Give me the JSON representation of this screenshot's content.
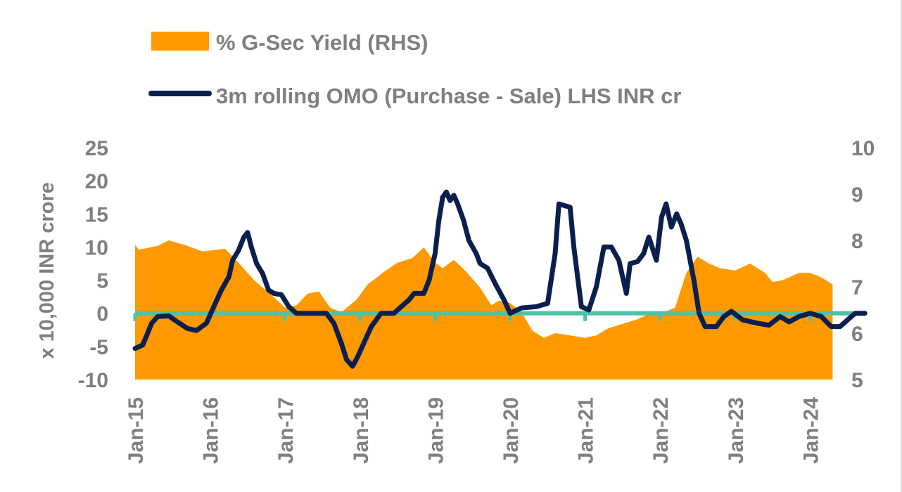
{
  "chart_data": {
    "type": "area+line",
    "colors": {
      "yield_area": "#ff9900",
      "omo_line": "#0b1f4f",
      "zero_line": "#4fc1a6",
      "text": "#7f7f7f"
    },
    "legend": [
      {
        "label": "% G-Sec Yield (RHS)",
        "kind": "area"
      },
      {
        "label": "3m rolling OMO (Purchase - Sale) LHS INR cr",
        "kind": "line"
      }
    ],
    "left_axis": {
      "title": "x 10,000 INR crore",
      "min": -10,
      "max": 25,
      "ticks": [
        "25",
        "20",
        "15",
        "10",
        "5",
        "0",
        "-5",
        "-10"
      ]
    },
    "right_axis": {
      "min": 5,
      "max": 10,
      "ticks": [
        "10",
        "9",
        "8",
        "7",
        "6",
        "5"
      ]
    },
    "x_axis": {
      "ticks": [
        "Jan-15",
        "Jan-16",
        "Jan-17",
        "Jan-18",
        "Jan-19",
        "Jan-20",
        "Jan-21",
        "Jan-22",
        "Jan-23",
        "Jan-24"
      ]
    },
    "series": [
      {
        "name": "% G-Sec Yield (RHS)",
        "axis": "right",
        "points": [
          [
            0.0,
            7.9
          ],
          [
            0.05,
            7.8
          ],
          [
            0.3,
            7.88
          ],
          [
            0.45,
            8.0
          ],
          [
            0.7,
            7.88
          ],
          [
            0.9,
            7.76
          ],
          [
            1.0,
            7.78
          ],
          [
            1.2,
            7.82
          ],
          [
            1.4,
            7.48
          ],
          [
            1.6,
            7.12
          ],
          [
            1.75,
            6.92
          ],
          [
            1.9,
            6.7
          ],
          [
            2.0,
            6.55
          ],
          [
            2.15,
            6.6
          ],
          [
            2.3,
            6.85
          ],
          [
            2.45,
            6.9
          ],
          [
            2.6,
            6.55
          ],
          [
            2.75,
            6.45
          ],
          [
            2.95,
            6.72
          ],
          [
            3.1,
            7.05
          ],
          [
            3.3,
            7.3
          ],
          [
            3.5,
            7.52
          ],
          [
            3.7,
            7.62
          ],
          [
            3.85,
            7.85
          ],
          [
            4.0,
            7.52
          ],
          [
            4.1,
            7.4
          ],
          [
            4.25,
            7.58
          ],
          [
            4.4,
            7.35
          ],
          [
            4.6,
            6.98
          ],
          [
            4.75,
            6.6
          ],
          [
            4.85,
            6.7
          ],
          [
            5.0,
            6.65
          ],
          [
            5.15,
            6.45
          ],
          [
            5.3,
            6.05
          ],
          [
            5.45,
            5.9
          ],
          [
            5.6,
            6.0
          ],
          [
            5.8,
            5.95
          ],
          [
            6.0,
            5.9
          ],
          [
            6.15,
            5.95
          ],
          [
            6.3,
            6.1
          ],
          [
            6.5,
            6.2
          ],
          [
            6.7,
            6.3
          ],
          [
            6.9,
            6.45
          ],
          [
            7.05,
            6.45
          ],
          [
            7.2,
            6.55
          ],
          [
            7.35,
            7.3
          ],
          [
            7.5,
            7.65
          ],
          [
            7.65,
            7.5
          ],
          [
            7.8,
            7.4
          ],
          [
            8.0,
            7.35
          ],
          [
            8.2,
            7.5
          ],
          [
            8.4,
            7.3
          ],
          [
            8.5,
            7.1
          ],
          [
            8.65,
            7.15
          ],
          [
            8.85,
            7.3
          ],
          [
            9.0,
            7.3
          ],
          [
            9.15,
            7.2
          ],
          [
            9.3,
            7.05
          ]
        ]
      },
      {
        "name": "3m rolling OMO (Purchase - Sale) LHS INR cr",
        "axis": "left",
        "points": [
          [
            0.0,
            -5.3
          ],
          [
            0.1,
            -4.8
          ],
          [
            0.15,
            -3.5
          ],
          [
            0.22,
            -1.5
          ],
          [
            0.3,
            -0.5
          ],
          [
            0.45,
            -0.4
          ],
          [
            0.55,
            -1.2
          ],
          [
            0.7,
            -2.3
          ],
          [
            0.82,
            -2.6
          ],
          [
            0.95,
            -1.5
          ],
          [
            1.05,
            1.0
          ],
          [
            1.15,
            3.5
          ],
          [
            1.25,
            5.5
          ],
          [
            1.3,
            8.0
          ],
          [
            1.38,
            9.5
          ],
          [
            1.45,
            11.5
          ],
          [
            1.5,
            12.2
          ],
          [
            1.55,
            10.0
          ],
          [
            1.62,
            7.5
          ],
          [
            1.7,
            6.0
          ],
          [
            1.78,
            3.5
          ],
          [
            1.85,
            3.0
          ],
          [
            1.95,
            2.8
          ],
          [
            2.05,
            1.0
          ],
          [
            2.15,
            0.0
          ],
          [
            2.4,
            0.0
          ],
          [
            2.55,
            0.0
          ],
          [
            2.65,
            -1.5
          ],
          [
            2.75,
            -4.5
          ],
          [
            2.82,
            -7.0
          ],
          [
            2.9,
            -8.0
          ],
          [
            2.97,
            -6.5
          ],
          [
            3.05,
            -4.5
          ],
          [
            3.15,
            -2.0
          ],
          [
            3.28,
            0.0
          ],
          [
            3.45,
            0.0
          ],
          [
            3.55,
            1.0
          ],
          [
            3.65,
            2.0
          ],
          [
            3.72,
            3.0
          ],
          [
            3.85,
            3.0
          ],
          [
            3.92,
            5.0
          ],
          [
            4.0,
            9.0
          ],
          [
            4.05,
            14.0
          ],
          [
            4.1,
            17.5
          ],
          [
            4.15,
            18.3
          ],
          [
            4.2,
            17.0
          ],
          [
            4.25,
            17.8
          ],
          [
            4.3,
            16.5
          ],
          [
            4.38,
            14.0
          ],
          [
            4.45,
            11.0
          ],
          [
            4.55,
            9.0
          ],
          [
            4.6,
            7.5
          ],
          [
            4.7,
            6.8
          ],
          [
            4.8,
            4.5
          ],
          [
            4.92,
            2.0
          ],
          [
            5.0,
            0.0
          ],
          [
            5.15,
            0.8
          ],
          [
            5.35,
            1.0
          ],
          [
            5.5,
            1.5
          ],
          [
            5.6,
            9.0
          ],
          [
            5.65,
            16.5
          ],
          [
            5.8,
            16.0
          ],
          [
            5.85,
            10.0
          ],
          [
            5.95,
            1.0
          ],
          [
            6.05,
            0.5
          ],
          [
            6.15,
            4.0
          ],
          [
            6.25,
            10.0
          ],
          [
            6.35,
            10.0
          ],
          [
            6.45,
            8.0
          ],
          [
            6.55,
            3.0
          ],
          [
            6.6,
            7.5
          ],
          [
            6.7,
            7.8
          ],
          [
            6.78,
            9.0
          ],
          [
            6.85,
            11.5
          ],
          [
            6.95,
            8.0
          ],
          [
            7.02,
            14.5
          ],
          [
            7.08,
            16.5
          ],
          [
            7.15,
            13.0
          ],
          [
            7.22,
            15.0
          ],
          [
            7.28,
            13.5
          ],
          [
            7.35,
            11.0
          ],
          [
            7.45,
            5.0
          ],
          [
            7.52,
            0.0
          ],
          [
            7.6,
            -2.0
          ],
          [
            7.75,
            -2.0
          ],
          [
            7.85,
            -0.5
          ],
          [
            7.95,
            0.3
          ],
          [
            8.1,
            -1.0
          ],
          [
            8.3,
            -1.5
          ],
          [
            8.45,
            -1.8
          ],
          [
            8.6,
            -0.5
          ],
          [
            8.72,
            -1.3
          ],
          [
            8.85,
            -0.5
          ],
          [
            9.0,
            0.0
          ],
          [
            9.15,
            -0.5
          ],
          [
            9.28,
            -2.0
          ],
          [
            9.4,
            -2.0
          ],
          [
            9.52,
            -0.8
          ],
          [
            9.6,
            0.0
          ],
          [
            9.73,
            0.0
          ]
        ]
      }
    ]
  }
}
